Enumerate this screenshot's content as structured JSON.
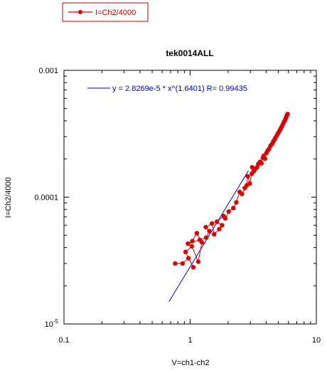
{
  "chart_data": {
    "type": "scatter",
    "title": "tek0014ALL",
    "xlabel": "V=ch1-ch2",
    "ylabel": "I=Ch2/4000",
    "xscale": "log",
    "yscale": "log",
    "xlim": [
      0.1,
      10
    ],
    "ylim": [
      1e-05,
      0.001
    ],
    "grid": false,
    "legend_position": "top-left",
    "x_ticks": [
      "0.1",
      "1",
      "10"
    ],
    "y_ticks": [
      "10",
      "0.0001",
      "0.001"
    ],
    "y_bottom_tick_exponent": "-5",
    "colors": {
      "series": "#dd0000",
      "fit": "#0000cc",
      "legend_text": "#cc0000"
    },
    "series": [
      {
        "name": "I=Ch2/4000",
        "style": "line-with-markers",
        "x": [
          0.76,
          0.87,
          0.97,
          1.06,
          0.92,
          1.03,
          1.16,
          1.24,
          1.13,
          1.04,
          0.96,
          1.19,
          1.34,
          1.42,
          1.33,
          1.49,
          1.55,
          1.7,
          1.79,
          1.63,
          1.84,
          1.9,
          2.02,
          2.2,
          2.32,
          2.47,
          2.57,
          2.71,
          2.81,
          2.86,
          2.97,
          3.08,
          3.19,
          3.1,
          3.27,
          3.39,
          3.47,
          3.58,
          3.67,
          3.77,
          3.83,
          3.92,
          4.02,
          4.11,
          4.22,
          4.33,
          4.47,
          4.56,
          4.66,
          4.73,
          4.85,
          4.95,
          5.04,
          5.15,
          5.24,
          5.35,
          5.45,
          5.55,
          5.64,
          5.72,
          5.8,
          5.87,
          5.92
        ],
        "y": [
          3e-05,
          3e-05,
          3.3e-05,
          2.8e-05,
          3.7e-05,
          4.1e-05,
          3.1e-05,
          4.4e-05,
          5.2e-05,
          4.5e-05,
          4.3e-05,
          4.6e-05,
          4.8e-05,
          5.4e-05,
          5.8e-05,
          6.2e-05,
          5.1e-05,
          5.6e-05,
          6e-05,
          6.4e-05,
          7.1e-05,
          6.8e-05,
          7.7e-05,
          8.2e-05,
          9.1e-05,
          0.00011,
          0.000106,
          0.000118,
          0.000124,
          0.000146,
          0.000128,
          0.000153,
          0.00016,
          0.000172,
          0.000166,
          0.000172,
          0.000183,
          0.00019,
          0.000185,
          0.000204,
          0.000212,
          0.000201,
          0.000223,
          0.000232,
          0.00024,
          0.000254,
          0.000263,
          0.000275,
          0.000284,
          0.000293,
          0.000305,
          0.000316,
          0.000326,
          0.000339,
          0.00035,
          0.000363,
          0.000378,
          0.000393,
          0.000404,
          0.000418,
          0.000433,
          0.000446,
          0.000452
        ]
      }
    ],
    "fit": {
      "label": "y = 2.8269e-5 * x^(1.6401)   R= 0.99435",
      "a": 2.8269e-05,
      "b": 1.6401,
      "x_range": [
        0.68,
        2.9
      ]
    }
  }
}
